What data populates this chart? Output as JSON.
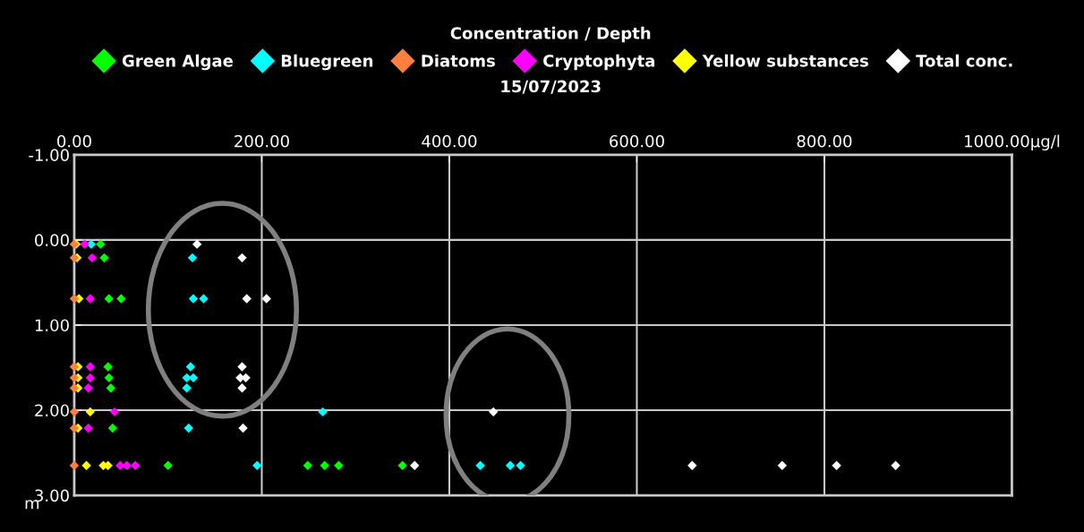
{
  "chart_data": {
    "type": "scatter",
    "title": "Concentration / Depth",
    "subtitle": "15/07/2023",
    "ylabel": "m",
    "xlim": [
      0,
      1000
    ],
    "xticks": [
      {
        "value": 0,
        "label": "0.00"
      },
      {
        "value": 200,
        "label": "200.00"
      },
      {
        "value": 400,
        "label": "400.00"
      },
      {
        "value": 600,
        "label": "600.00"
      },
      {
        "value": 800,
        "label": "800.00"
      },
      {
        "value": 1000,
        "label": "1000.00µg/l"
      }
    ],
    "ylim": [
      3,
      -1
    ],
    "yticks": [
      {
        "value": -1,
        "label": "-1.00"
      },
      {
        "value": 0,
        "label": "0.00"
      },
      {
        "value": 1,
        "label": "1.00"
      },
      {
        "value": 2,
        "label": "2.00"
      },
      {
        "value": 3,
        "label": "3.00"
      }
    ],
    "grid": true,
    "legend": "top",
    "marker": "diamond",
    "series": [
      {
        "name": "Green Algae",
        "color": "#00ff00",
        "x": [
          28,
          32,
          37,
          50,
          36,
          37,
          39,
          41,
          100,
          249,
          267,
          282,
          350
        ],
        "values": [
          0.05,
          0.21,
          0.69,
          0.69,
          1.49,
          1.62,
          1.74,
          2.21,
          2.65,
          2.65,
          2.65,
          2.65,
          2.65
        ]
      },
      {
        "name": "Bluegreen",
        "color": "#00ffff",
        "x": [
          18,
          126,
          127,
          138,
          124,
          120,
          127,
          120,
          265,
          122,
          195,
          433,
          465,
          476
        ],
        "values": [
          0.05,
          0.21,
          0.69,
          0.69,
          1.49,
          1.62,
          1.62,
          1.74,
          2.02,
          2.21,
          2.65,
          2.65,
          2.65,
          2.65
        ]
      },
      {
        "name": "Diatoms",
        "color": "#ff7f3f",
        "x": [
          0,
          0,
          0,
          0,
          0,
          0,
          0,
          0,
          0
        ],
        "values": [
          0.05,
          0.21,
          0.69,
          1.49,
          1.62,
          1.74,
          2.02,
          2.21,
          2.65
        ]
      },
      {
        "name": "Cryptophyta",
        "color": "#ff00ff",
        "x": [
          11,
          19,
          17,
          17,
          17,
          15,
          43,
          15,
          49,
          56,
          65
        ],
        "values": [
          0.05,
          0.21,
          0.69,
          1.49,
          1.62,
          1.74,
          2.02,
          2.21,
          2.65,
          2.65,
          2.65
        ]
      },
      {
        "name": "Yellow substances",
        "color": "#ffff00",
        "x": [
          2,
          3,
          5,
          4,
          4,
          4,
          17,
          4,
          13,
          31,
          36
        ],
        "values": [
          0.05,
          0.21,
          0.69,
          1.49,
          1.62,
          1.74,
          2.02,
          2.21,
          2.65,
          2.65,
          2.65
        ]
      },
      {
        "name": "Total conc.",
        "color": "#ffffff",
        "x": [
          131,
          179,
          184,
          205,
          179,
          177,
          183,
          179,
          447,
          180,
          363,
          659,
          755,
          813,
          876
        ],
        "values": [
          0.05,
          0.21,
          0.69,
          0.69,
          1.49,
          1.62,
          1.62,
          1.74,
          2.02,
          2.21,
          2.65,
          2.65,
          2.65,
          2.65,
          2.65
        ]
      }
    ]
  }
}
